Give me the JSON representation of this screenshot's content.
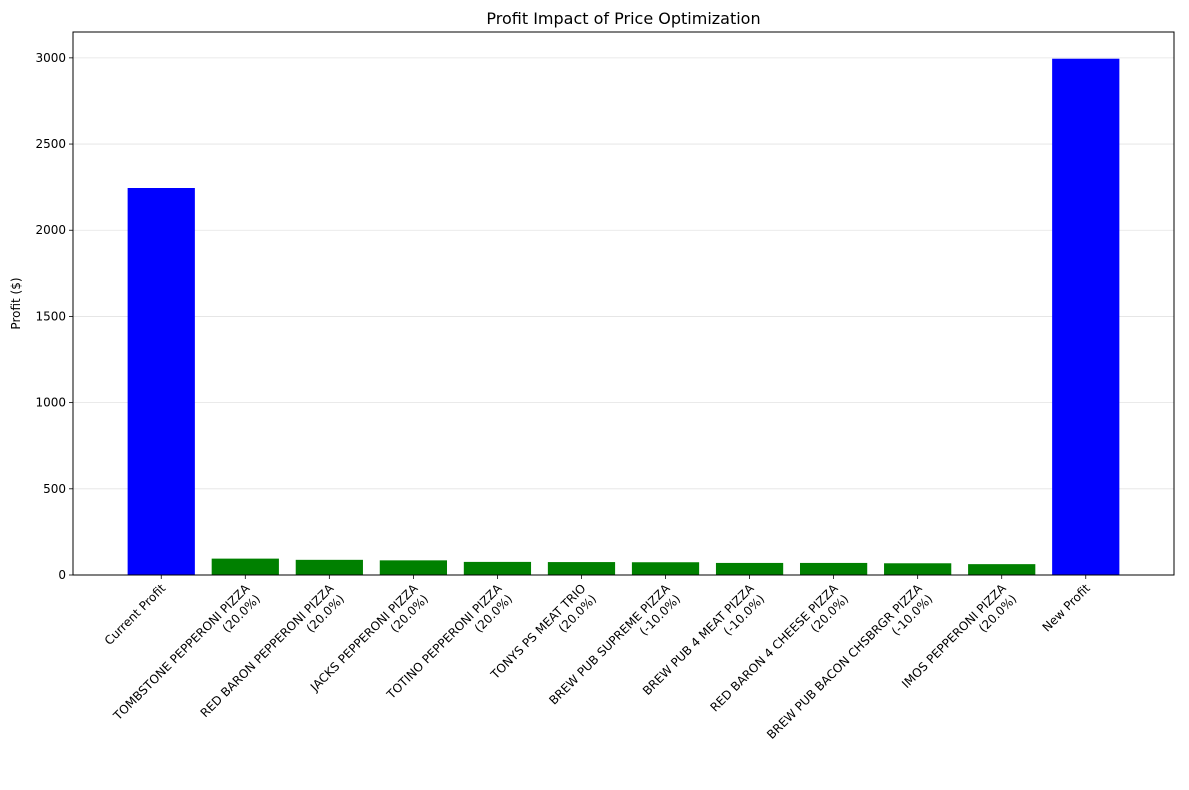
{
  "chart_data": {
    "type": "bar",
    "title": "Profit Impact of Price Optimization",
    "xlabel": "",
    "ylabel": "Profit ($)",
    "ylim": [
      0,
      3150
    ],
    "yticks": [
      0,
      500,
      1000,
      1500,
      2000,
      2500,
      3000
    ],
    "grid": "y",
    "categories": [
      "Current Profit",
      "TOMBSTONE PEPPERONI PIZZA\n(20.0%)",
      "RED BARON PEPPERONI PIZZA\n(20.0%)",
      "JACKS PEPPERONI PIZZA\n(20.0%)",
      "TOTINO PEPPERONI PIZZA\n(20.0%)",
      "TONYS PS MEAT TRIO\n(20.0%)",
      "BREW PUB SUPREME PIZZA\n(-10.0%)",
      "BREW PUB 4 MEAT PIZZA\n(-10.0%)",
      "RED BARON 4 CHEESE PIZZA\n(20.0%)",
      "BREW PUB BACON CHSBRGR PIZZA\n(-10.0%)",
      "IMOS PEPPERONI PIZZA\n(20.0%)",
      "New Profit"
    ],
    "values": [
      2245,
      95,
      88,
      85,
      76,
      75,
      74,
      70,
      70,
      68,
      63,
      2995
    ],
    "colors": [
      "#0000ff",
      "#008000",
      "#008000",
      "#008000",
      "#008000",
      "#008000",
      "#008000",
      "#008000",
      "#008000",
      "#008000",
      "#008000",
      "#0000ff"
    ]
  }
}
